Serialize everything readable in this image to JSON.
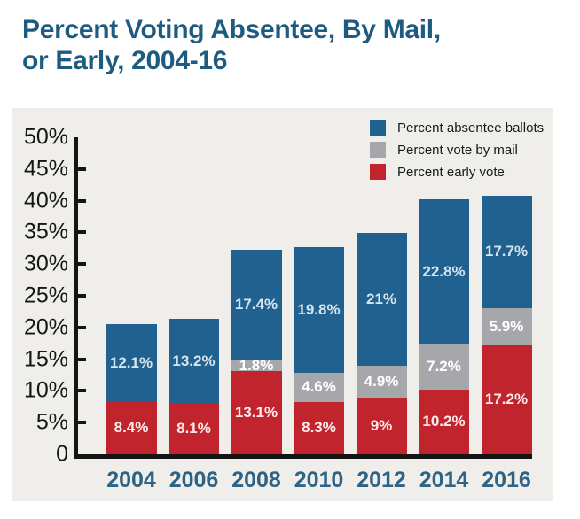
{
  "page_title": "Percent Voting Absentee, By Mail, or Early, 2004-16",
  "title": {
    "line1": "Percent Voting Absentee, By Mail,",
    "line2": "or Early, 2004-16"
  },
  "legend": [
    {
      "label": "Percent absentee ballots",
      "color": "#20618f"
    },
    {
      "label": "Percent vote by mail",
      "color": "#a5a7aa"
    },
    {
      "label": "Percent early vote",
      "color": "#c2242e"
    }
  ],
  "chart_data": {
    "type": "bar",
    "stacked": true,
    "title": "Percent Voting Absentee, By Mail, or Early, 2004-16",
    "categories": [
      "2004",
      "2006",
      "2008",
      "2010",
      "2012",
      "2014",
      "2016"
    ],
    "series": [
      {
        "name": "Percent early vote",
        "color": "#c2242e",
        "label_color": "#fdecea",
        "values": [
          8.4,
          8.1,
          13.1,
          8.3,
          9,
          10.2,
          17.2
        ],
        "labels": [
          "8.4%",
          "8.1%",
          "13.1%",
          "8.3%",
          "9%",
          "10.2%",
          "17.2%"
        ]
      },
      {
        "name": "Percent vote by mail",
        "color": "#a5a7aa",
        "label_color": "#ffffff",
        "values": [
          0,
          0,
          1.8,
          4.6,
          4.9,
          7.2,
          5.9
        ],
        "labels": [
          "",
          "",
          "1.8%",
          "4.6%",
          "4.9%",
          "7.2%",
          "5.9%"
        ]
      },
      {
        "name": "Percent absentee ballots",
        "color": "#20618f",
        "label_color": "#d5e5ef",
        "values": [
          12.1,
          13.2,
          17.4,
          19.8,
          21,
          22.8,
          17.7
        ],
        "labels": [
          "12.1%",
          "13.2%",
          "17.4%",
          "19.8%",
          "21%",
          "22.8%",
          "17.7%"
        ]
      }
    ],
    "xlabel": "",
    "ylabel": "",
    "y_axis": {
      "min": 0,
      "max": 50,
      "step": 5,
      "tick_labels": [
        "50%",
        "45%",
        "40%",
        "35%",
        "30%",
        "25%",
        "20%",
        "15%",
        "10%",
        "5%",
        "0"
      ]
    },
    "legend_position": "top-right",
    "grid": false
  },
  "colors": {
    "bar_blue": "#20618f",
    "bar_gray": "#a5a7aa",
    "bar_red": "#c2242e",
    "panel_bg": "#efeeeb",
    "title_text": "#1e5b80",
    "year_label": "#2d6385",
    "axis": "#141414"
  }
}
